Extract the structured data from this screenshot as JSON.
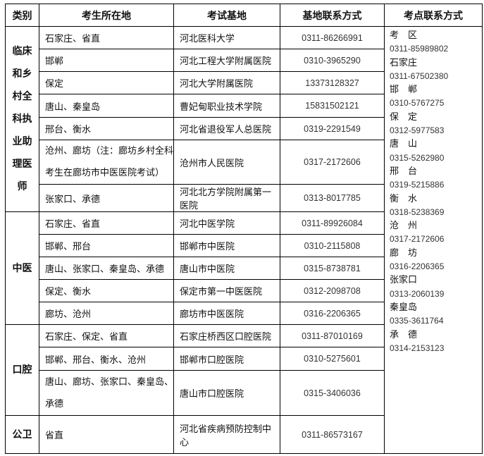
{
  "headers": [
    "类别",
    "考生所在地",
    "考试基地",
    "基地联系方式",
    "考点联系方式"
  ],
  "groups": [
    {
      "category_lines": [
        "临床",
        "和乡",
        "村全",
        "科执",
        "业助",
        "理医",
        "师"
      ],
      "rows": [
        {
          "location": "石家庄、省直",
          "base": "河北医科大学",
          "phone": "0311-86266991"
        },
        {
          "location": "邯郸",
          "base": "河北工程大学附属医院",
          "phone": "0310-3965290"
        },
        {
          "location": "保定",
          "base": "河北大学附属医院",
          "phone": "13373128327"
        },
        {
          "location": "唐山、秦皇岛",
          "base": "曹妃甸职业技术学院",
          "phone": "15831502121"
        },
        {
          "location": "邢台、衡水",
          "base": "河北省退役军人总医院",
          "phone": "0319-2291549"
        },
        {
          "location_lines": [
            "沧州、廊坊（注：廊坊乡村全科",
            "考生在廊坊市中医医院考试）"
          ],
          "base": "沧州市人民医院",
          "phone": "0317-2172606"
        },
        {
          "location": "张家口、承德",
          "base": "河北北方学院附属第一医院",
          "phone": "0313-8017785"
        }
      ]
    },
    {
      "category_lines": [
        "中医"
      ],
      "rows": [
        {
          "location": "石家庄、省直",
          "base": "河北中医学院",
          "phone": "0311-89926084"
        },
        {
          "location": "邯郸、邢台",
          "base": "邯郸市中医院",
          "phone": "0310-2115808"
        },
        {
          "location": "唐山、张家口、秦皇岛、承德",
          "base": "唐山市中医院",
          "phone": "0315-8738781"
        },
        {
          "location": "保定、衡水",
          "base": "保定市第一中医医院",
          "phone": "0312-2098708"
        },
        {
          "location": "廊坊、沧州",
          "base": "廊坊市中医医院",
          "phone": "0316-2206365"
        }
      ]
    },
    {
      "category_lines": [
        "口腔"
      ],
      "rows": [
        {
          "location": "石家庄、保定、省直",
          "base": "石家庄桥西区口腔医院",
          "phone": "0311-87010169"
        },
        {
          "location": "邯郸、邢台、衡水、沧州",
          "base": "邯郸市口腔医院",
          "phone": "0310-5275601"
        },
        {
          "location_lines": [
            "唐山、廊坊、张家口、秦皇岛、",
            "承德"
          ],
          "base": "唐山市口腔医院",
          "phone": "0315-3406036"
        }
      ]
    },
    {
      "category_lines": [
        "公卫"
      ],
      "rows": [
        {
          "location": "省直",
          "base": "河北省疾病预防控制中心",
          "phone": "0311-86573167"
        }
      ]
    }
  ],
  "exam_contacts": [
    {
      "name": "考　区",
      "phone": "0311-85989802"
    },
    {
      "name": "石家庄",
      "phone": "0311-67502380"
    },
    {
      "name": "邯　郸",
      "phone": "0310-5767275"
    },
    {
      "name": "保　定",
      "phone": "0312-5977583"
    },
    {
      "name": "唐　山",
      "phone": "0315-5262980"
    },
    {
      "name": "邢　台",
      "phone": "0319-5215886"
    },
    {
      "name": "衡　水",
      "phone": "0318-5238369"
    },
    {
      "name": "沧　州",
      "phone": "0317-2172606"
    },
    {
      "name": "廊　坊",
      "phone": "0316-2206365"
    },
    {
      "name": "张家口",
      "phone": "0313-2060139"
    },
    {
      "name": "秦皇岛",
      "phone": "0335-3611764"
    },
    {
      "name": "承　德",
      "phone": "0314-2153123"
    }
  ]
}
